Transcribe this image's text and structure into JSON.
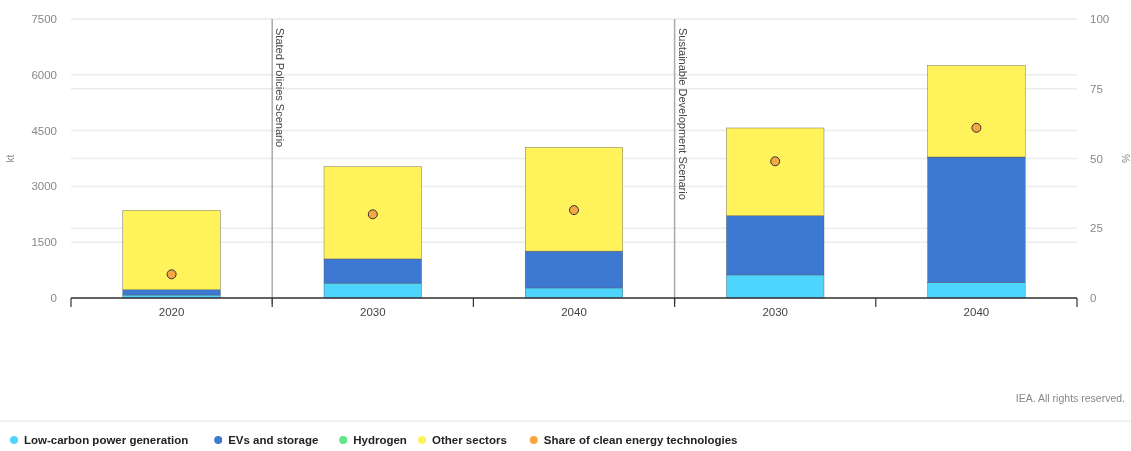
{
  "chart_data": {
    "type": "bar",
    "stacked": true,
    "categories": [
      "2020",
      "2030",
      "2040",
      "2030",
      "2040"
    ],
    "series": [
      {
        "name": "Low-carbon power generation",
        "color": "#4dd5fd",
        "values": [
          80,
          400,
          270,
          620,
          410
        ]
      },
      {
        "name": "EVs and storage",
        "color": "#3d78d2",
        "values": [
          140,
          650,
          990,
          1590,
          3380
        ]
      },
      {
        "name": "Hydrogen",
        "color": "#5ee88a",
        "values": [
          0,
          0,
          0,
          0,
          0
        ]
      },
      {
        "name": "Other sectors",
        "color": "#fff25a",
        "values": [
          2140,
          2480,
          2790,
          2360,
          2460
        ]
      },
      {
        "name": "Share of clean energy technologies",
        "type": "scatter",
        "axis": "y2",
        "color": "#f5a742",
        "values": [
          8.5,
          30,
          31.5,
          49,
          61
        ]
      }
    ],
    "ylabel": "kt",
    "y2label": "%",
    "ylim": [
      0,
      7500
    ],
    "yticks": [
      0,
      1500,
      3000,
      4500,
      6000,
      7500
    ],
    "y2lim": [
      0,
      100
    ],
    "y2ticks": [
      0,
      25,
      50,
      75,
      100
    ],
    "grid": true,
    "legend": "bottom",
    "marker": "circle",
    "annotations": [
      "Stated Policies Scenario",
      "Sustainable Development Scenario",
      "IEA. All rights reserved."
    ]
  }
}
